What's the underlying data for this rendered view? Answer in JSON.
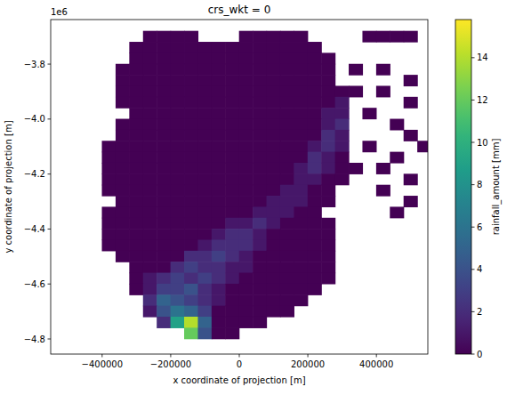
{
  "chart_data": {
    "type": "heatmap",
    "title": "crs_wkt = 0",
    "x_label": "x coordinate of projection [m]",
    "y_label": "y coordinate of projection [m]",
    "y_offset_text": "1e6",
    "xlim": [
      -550000,
      550000
    ],
    "ylim": [
      -4855000,
      -3638000
    ],
    "xticks": [
      {
        "value": -400000,
        "label": "−400000"
      },
      {
        "value": -200000,
        "label": "−200000"
      },
      0,
      {
        "value": 200000,
        "label": "200000"
      },
      {
        "value": 400000,
        "label": "400000"
      }
    ],
    "yticks": [
      {
        "value": -4800000,
        "label": "−4.8"
      },
      {
        "value": -4600000,
        "label": "−4.6"
      },
      {
        "value": -4400000,
        "label": "−4.4"
      },
      {
        "value": -4200000,
        "label": "−4.2"
      },
      {
        "value": -4000000,
        "label": "−4.0"
      },
      {
        "value": -3800000,
        "label": "−3.8"
      }
    ],
    "x": [
      -380000,
      -340000,
      -300000,
      -260000,
      -220000,
      -180000,
      -140000,
      -100000,
      -60000,
      -20000,
      20000,
      60000,
      100000,
      140000,
      180000,
      220000,
      260000,
      300000,
      340000,
      380000,
      420000,
      460000,
      500000,
      540000
    ],
    "y": [
      -3700000,
      -3740000,
      -3780000,
      -3820000,
      -3860000,
      -3900000,
      -3940000,
      -3980000,
      -4020000,
      -4060000,
      -4100000,
      -4140000,
      -4180000,
      -4220000,
      -4260000,
      -4300000,
      -4340000,
      -4380000,
      -4420000,
      -4460000,
      -4500000,
      -4540000,
      -4580000,
      -4620000,
      -4660000,
      -4700000,
      -4740000,
      -4780000
    ],
    "z": [
      [
        null,
        null,
        null,
        0,
        0,
        0,
        0,
        null,
        null,
        null,
        0,
        0,
        0,
        0,
        0,
        null,
        null,
        null,
        null,
        0,
        0,
        0,
        0,
        null
      ],
      [
        null,
        null,
        0,
        0,
        0,
        0,
        0,
        0,
        0,
        0,
        0,
        0,
        0,
        0,
        0,
        0,
        null,
        null,
        null,
        null,
        null,
        null,
        null,
        null
      ],
      [
        null,
        null,
        0,
        0,
        0,
        0,
        0,
        0,
        0,
        0,
        0,
        0,
        0,
        0,
        0,
        0,
        0,
        null,
        null,
        null,
        null,
        null,
        null,
        null
      ],
      [
        null,
        0,
        0,
        0,
        0,
        0,
        0,
        0,
        0,
        0,
        0,
        0,
        0,
        0,
        0,
        0,
        0,
        null,
        0,
        null,
        0,
        null,
        null,
        null
      ],
      [
        null,
        0,
        0,
        0,
        0,
        0,
        0,
        0,
        0,
        0,
        0,
        0,
        0,
        0,
        0,
        0,
        0,
        null,
        null,
        null,
        null,
        null,
        0,
        null
      ],
      [
        null,
        0,
        0,
        0,
        0,
        0,
        0,
        0,
        0,
        0,
        0,
        0,
        0,
        0,
        0,
        0,
        0,
        0,
        0,
        null,
        0,
        null,
        null,
        null
      ],
      [
        null,
        0,
        0,
        0,
        0,
        0,
        0,
        0,
        0,
        0,
        0,
        0,
        0,
        0,
        0,
        0,
        0,
        1,
        null,
        null,
        null,
        null,
        0,
        null
      ],
      [
        null,
        null,
        0,
        0,
        0,
        0,
        0,
        0,
        0,
        0,
        0,
        0,
        0,
        0,
        0,
        0,
        1,
        1,
        null,
        0,
        null,
        null,
        null,
        null
      ],
      [
        null,
        0,
        0,
        0,
        0,
        0,
        0,
        0,
        0,
        0,
        0,
        0,
        0,
        0,
        0,
        0,
        1,
        2,
        null,
        null,
        null,
        0,
        null,
        null
      ],
      [
        null,
        0,
        0,
        0,
        0,
        0,
        0,
        0,
        0,
        0,
        0,
        0,
        0,
        0,
        0,
        0,
        2,
        1,
        null,
        null,
        null,
        null,
        0,
        null
      ],
      [
        0,
        0,
        0,
        0,
        0,
        0,
        0,
        0,
        0,
        0,
        0,
        0,
        0,
        0,
        0,
        1,
        2,
        1,
        null,
        0,
        null,
        null,
        null,
        0
      ],
      [
        0,
        0,
        0,
        0,
        0,
        0,
        0,
        0,
        0,
        0,
        0,
        0,
        0,
        0,
        0,
        2,
        1,
        0,
        null,
        null,
        null,
        0,
        null,
        null
      ],
      [
        0,
        0,
        0,
        0,
        0,
        0,
        0,
        0,
        0,
        0,
        0,
        0,
        0,
        0,
        1,
        2,
        1,
        0,
        0,
        null,
        0,
        null,
        null,
        null
      ],
      [
        0,
        0,
        0,
        0,
        0,
        0,
        0,
        0,
        0,
        0,
        0,
        0,
        0,
        0,
        1,
        1,
        0,
        0,
        null,
        null,
        null,
        null,
        0,
        null
      ],
      [
        0,
        0,
        0,
        0,
        0,
        0,
        0,
        0,
        0,
        0,
        0,
        0,
        0,
        1,
        1,
        0,
        0,
        null,
        null,
        null,
        0,
        null,
        null,
        null
      ],
      [
        null,
        0,
        0,
        0,
        0,
        0,
        0,
        0,
        0,
        0,
        0,
        0,
        1,
        1,
        1,
        0,
        0,
        null,
        null,
        null,
        null,
        null,
        0,
        null
      ],
      [
        0,
        0,
        0,
        0,
        0,
        0,
        0,
        0,
        0,
        0,
        0,
        1,
        1,
        1,
        0,
        0,
        null,
        null,
        null,
        null,
        null,
        0,
        null,
        null
      ],
      [
        0,
        0,
        0,
        0,
        0,
        0,
        0,
        0,
        0,
        1,
        1,
        2,
        1,
        0,
        0,
        0,
        0,
        null,
        null,
        null,
        null,
        null,
        null,
        null
      ],
      [
        0,
        0,
        0,
        0,
        0,
        0,
        0,
        0,
        1,
        2,
        2,
        1,
        0,
        0,
        0,
        0,
        0,
        null,
        null,
        null,
        null,
        null,
        null,
        null
      ],
      [
        0,
        0,
        0,
        0,
        0,
        0,
        0,
        1,
        2,
        2,
        2,
        1,
        0,
        0,
        0,
        0,
        0,
        null,
        null,
        null,
        null,
        null,
        null,
        null
      ],
      [
        null,
        0,
        0,
        0,
        0,
        0,
        2,
        2,
        3,
        2,
        1,
        0,
        0,
        0,
        0,
        0,
        0,
        null,
        null,
        null,
        null,
        null,
        null,
        null
      ],
      [
        null,
        null,
        0,
        0,
        0,
        2,
        3,
        2,
        2,
        1,
        1,
        0,
        0,
        0,
        0,
        0,
        0,
        null,
        null,
        null,
        null,
        null,
        null,
        null
      ],
      [
        null,
        null,
        0,
        1,
        2,
        3,
        2,
        3,
        2,
        1,
        0,
        0,
        0,
        0,
        0,
        0,
        0,
        null,
        null,
        null,
        null,
        null,
        null,
        null
      ],
      [
        null,
        null,
        0,
        1,
        3,
        3,
        4,
        2,
        1,
        0,
        0,
        0,
        0,
        0,
        0,
        0,
        null,
        null,
        null,
        null,
        null,
        null,
        null,
        null
      ],
      [
        null,
        null,
        null,
        2,
        5,
        4,
        3,
        2,
        1,
        0,
        0,
        0,
        0,
        0,
        0,
        null,
        null,
        null,
        null,
        null,
        null,
        null,
        null,
        null
      ],
      [
        null,
        null,
        null,
        1,
        4,
        6,
        5,
        3,
        0,
        0,
        0,
        0,
        0,
        0,
        null,
        null,
        null,
        null,
        null,
        null,
        null,
        null,
        null,
        null
      ],
      [
        null,
        null,
        null,
        null,
        2,
        9,
        14,
        5,
        0,
        0,
        0,
        0,
        null,
        null,
        null,
        null,
        null,
        null,
        null,
        null,
        null,
        null,
        null,
        null
      ],
      [
        null,
        null,
        null,
        null,
        null,
        null,
        12,
        4,
        0,
        0,
        null,
        null,
        null,
        null,
        null,
        null,
        null,
        null,
        null,
        null,
        null,
        null,
        null,
        null
      ]
    ],
    "colorbar": {
      "label": "rainfall_amount [mm]",
      "lim": [
        0,
        15.8
      ],
      "ticks": [
        0,
        2,
        4,
        6,
        8,
        10,
        12,
        14
      ]
    }
  }
}
